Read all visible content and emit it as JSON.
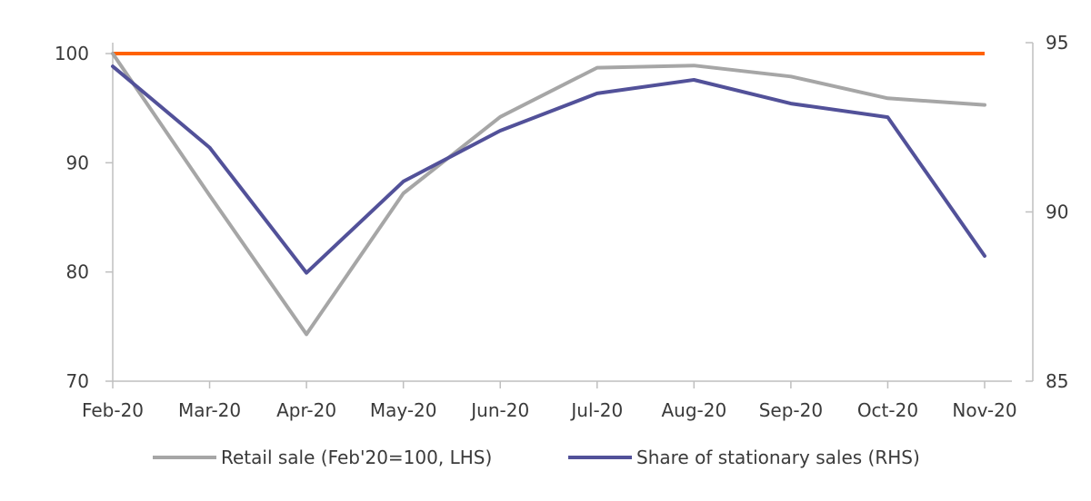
{
  "chart_data": {
    "type": "line",
    "categories": [
      "Feb-20",
      "Mar-20",
      "Apr-20",
      "May-20",
      "Jun-20",
      "Jul-20",
      "Aug-20",
      "Sep-20",
      "Oct-20",
      "Nov-20"
    ],
    "y_left": {
      "ylim": [
        70,
        100
      ],
      "ticks": [
        70,
        80,
        90,
        100
      ]
    },
    "y_right": {
      "ylim": [
        85,
        95
      ],
      "ticks": [
        85,
        90,
        95
      ]
    },
    "reference_line": {
      "value": 100,
      "axis": "left",
      "color": "#FF6200"
    },
    "series": [
      {
        "name": "Retail sale (Feb'20=100, LHS)",
        "axis": "left",
        "color": "#A6A6A6",
        "values": [
          100,
          87,
          74.3,
          87.2,
          94.2,
          98.7,
          98.9,
          97.9,
          95.9,
          95.3
        ]
      },
      {
        "name": "Share of stationary sales (RHS)",
        "axis": "right",
        "color": "#525199",
        "values": [
          94.3,
          91.9,
          88.2,
          90.9,
          92.4,
          93.5,
          93.9,
          93.2,
          92.8,
          88.7
        ]
      }
    ],
    "legend_position": "bottom",
    "grid": false
  }
}
